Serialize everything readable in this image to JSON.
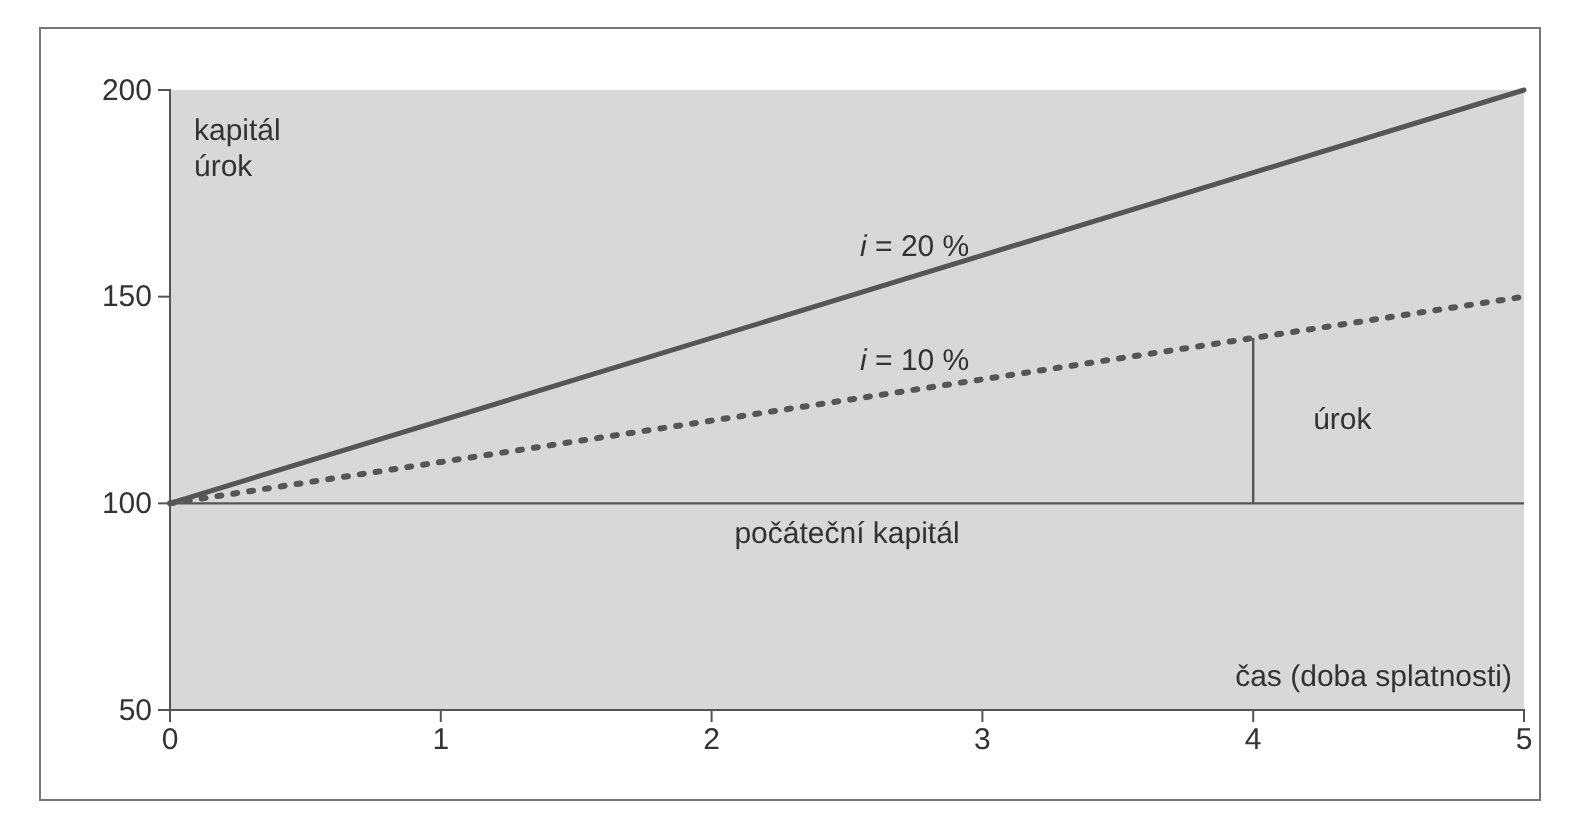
{
  "chart_data": {
    "type": "line",
    "ylabel": "kapitál\núrok",
    "xlabel": "čas (doba splatnosti)",
    "x": [
      0,
      5
    ],
    "series": [
      {
        "name": "i = 20 %",
        "color": "#555555",
        "values": [
          100,
          200
        ],
        "line_style": "solid"
      },
      {
        "name": "i = 10 %",
        "color": "#555555",
        "values": [
          100,
          150
        ],
        "line_style": "dotted"
      }
    ],
    "xlim": [
      0,
      5
    ],
    "xticks": [
      0,
      1,
      2,
      3,
      4,
      5
    ],
    "ylim": [
      50,
      200
    ],
    "yticks": [
      50,
      100,
      150,
      200
    ],
    "ref_lines": [
      {
        "axis": "y",
        "value": 100,
        "label": "počáteční kapitál",
        "color": "#555555"
      },
      {
        "axis": "x",
        "value": 4,
        "label": "úrok",
        "color": "#555555"
      }
    ],
    "grid": false,
    "marker": "none"
  }
}
